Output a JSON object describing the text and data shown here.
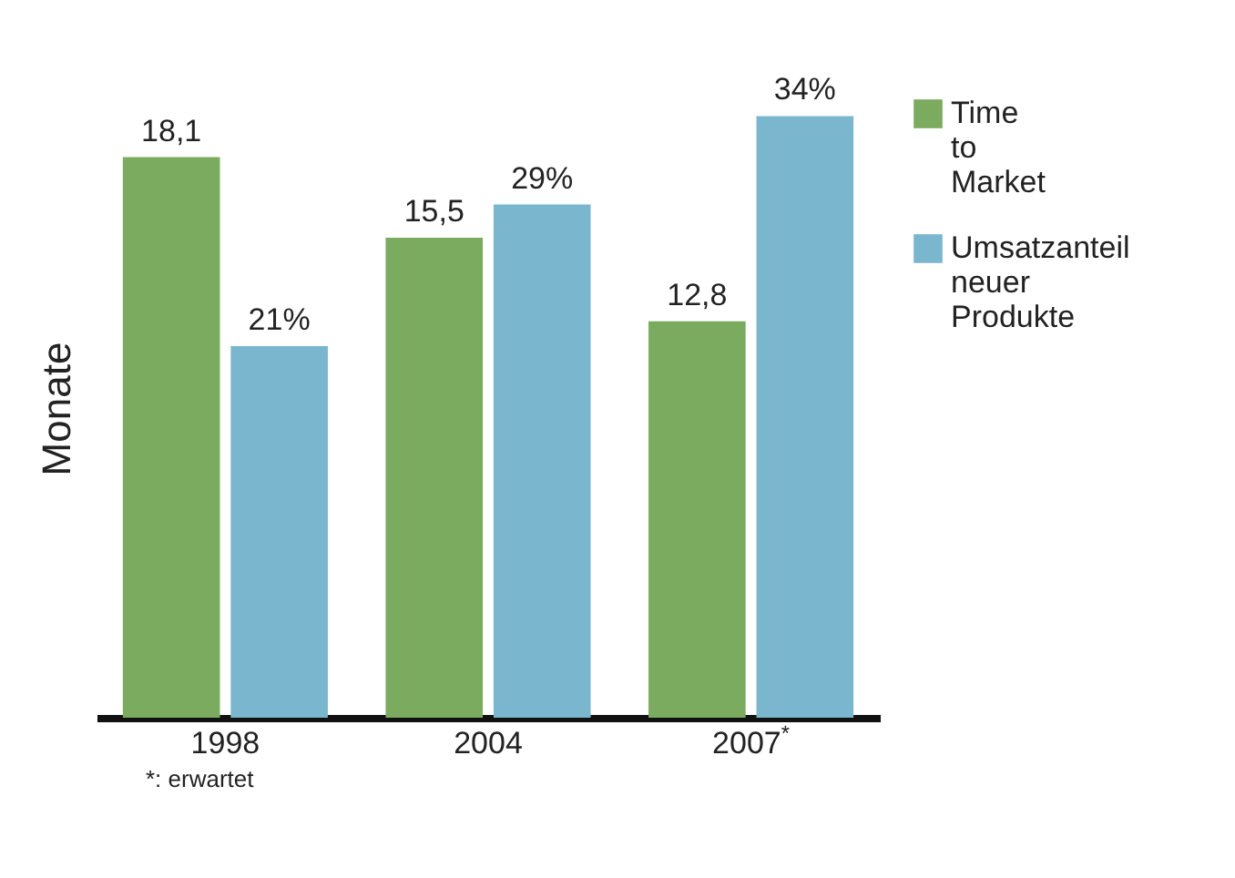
{
  "chart_data": {
    "type": "bar",
    "ylabel": "Monate",
    "categories": [
      "1998",
      "2004",
      "2007$^{*}$"
    ],
    "series": [
      {
        "name": "Time to Market",
        "color": "#7bab5e",
        "values": [
          18.1,
          15.5,
          12.8
        ],
        "value_labels": [
          "18,1",
          "15,5",
          "12,8"
        ]
      },
      {
        "name": "Umsatzanteil neuer Produkte",
        "color": "#7ab7cf",
        "values": [
          21,
          29,
          34
        ],
        "value_labels": [
          "21%",
          "29%",
          "34%"
        ],
        "axis": "y2"
      }
    ],
    "tick_labels": "x",
    "legend": "right",
    "annotations": [
      "*: erwartet"
    ]
  }
}
